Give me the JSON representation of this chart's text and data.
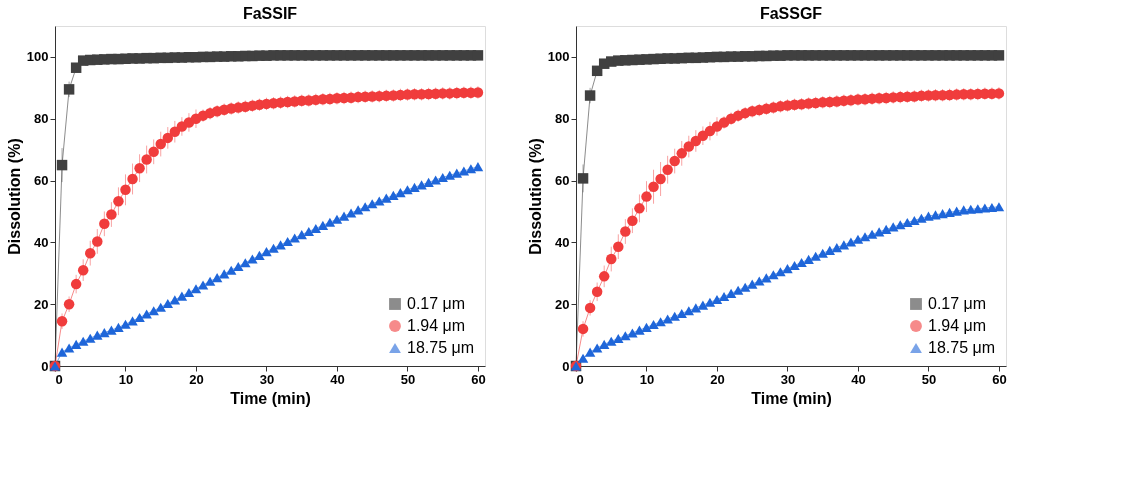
{
  "chart_data": [
    {
      "type": "line",
      "title": "FaSSIF",
      "xlabel": "Time (min)",
      "ylabel": "Dissolution (%)",
      "xlim": [
        0,
        61
      ],
      "ylim": [
        0,
        110
      ],
      "xticks": [
        0,
        10,
        20,
        30,
        40,
        50,
        60
      ],
      "yticks": [
        0,
        20,
        40,
        60,
        80,
        100
      ],
      "grid": false,
      "legend": "bottom right",
      "x": [
        0,
        1,
        2,
        3,
        4,
        5,
        6,
        7,
        8,
        9,
        10,
        11,
        12,
        13,
        14,
        15,
        16,
        17,
        18,
        19,
        20,
        21,
        22,
        23,
        24,
        25,
        26,
        27,
        28,
        29,
        30,
        31,
        32,
        33,
        34,
        35,
        36,
        37,
        38,
        39,
        40,
        41,
        42,
        43,
        44,
        45,
        46,
        47,
        48,
        49,
        50,
        51,
        52,
        53,
        54,
        55,
        56,
        57,
        58,
        59,
        60
      ],
      "series": [
        {
          "name": "0.17 μm",
          "color": "#404040",
          "marker": "square",
          "values": [
            0,
            65,
            89.5,
            96.5,
            98.8,
            99.0,
            99.1,
            99.2,
            99.3,
            99.3,
            99.4,
            99.5,
            99.5,
            99.6,
            99.6,
            99.7,
            99.7,
            99.8,
            99.8,
            99.9,
            99.9,
            100.0,
            100.0,
            100.1,
            100.1,
            100.2,
            100.2,
            100.3,
            100.3,
            100.4,
            100.4,
            100.5,
            100.5,
            100.5,
            100.5,
            100.5,
            100.5,
            100.5,
            100.5,
            100.5,
            100.5,
            100.5,
            100.5,
            100.5,
            100.5,
            100.5,
            100.5,
            100.5,
            100.5,
            100.5,
            100.5,
            100.5,
            100.5,
            100.5,
            100.5,
            100.5,
            100.5,
            100.5,
            100.5,
            100.5,
            100.5
          ],
          "errors": [
            0,
            5.5,
            2.5,
            1,
            0.5,
            0.5,
            0.5,
            0.5,
            0.5,
            0.5,
            0.5,
            0.5,
            0.5,
            0.5,
            0.5,
            0.5,
            0.5,
            0.5,
            0.5,
            0.5,
            0.5,
            0.5,
            0.5,
            0.5,
            0.5,
            0.5,
            0.5,
            0.5,
            0.5,
            0.5,
            0.5,
            0.5,
            0.5,
            0.5,
            0.5,
            0.5,
            0.5,
            0.5,
            0.5,
            0.5,
            0.5,
            0.5,
            0.5,
            0.5,
            0.5,
            0.5,
            0.5,
            0.5,
            0.5,
            0.5,
            0.5,
            0.5,
            0.5,
            0.5,
            0.5,
            0.5,
            0.5,
            0.5,
            0.5,
            0.5,
            0.5
          ]
        },
        {
          "name": "1.94 μm",
          "color": "#f03c3c",
          "marker": "circle",
          "values": [
            0,
            14.5,
            20,
            26.5,
            31,
            36.5,
            40.3,
            46,
            49,
            53.3,
            57,
            60.5,
            64,
            66.8,
            69.3,
            71.8,
            73.8,
            75.8,
            77.5,
            78.8,
            80,
            81,
            81.8,
            82.4,
            82.9,
            83.3,
            83.6,
            83.9,
            84.2,
            84.5,
            84.8,
            85.0,
            85.2,
            85.4,
            85.6,
            85.8,
            85.9,
            86.1,
            86.3,
            86.4,
            86.6,
            86.7,
            86.8,
            87.0,
            87.1,
            87.2,
            87.3,
            87.4,
            87.5,
            87.7,
            87.8,
            87.9,
            87.9,
            88.0,
            88.1,
            88.2,
            88.2,
            88.3,
            88.4,
            88.4,
            88.5
          ],
          "errors": [
            0,
            2.5,
            2.5,
            3,
            3.5,
            4,
            4,
            4,
            4,
            4.5,
            5,
            5,
            4.5,
            4.5,
            4,
            4,
            3.5,
            3.5,
            3,
            3,
            3,
            2,
            2,
            2,
            2,
            2,
            2,
            2,
            2,
            2,
            2,
            2,
            2,
            2,
            2,
            2,
            2,
            2,
            2,
            2,
            2,
            2,
            2,
            2,
            2,
            2,
            2,
            2,
            2,
            2,
            2,
            2,
            2,
            2,
            2,
            2,
            2,
            2,
            2,
            2,
            2
          ]
        },
        {
          "name": "18.75 μm",
          "color": "#1f66d9",
          "marker": "triangle",
          "values": [
            0,
            4.5,
            5.8,
            7,
            8,
            9,
            10,
            10.8,
            11.6,
            12.5,
            13.5,
            14.6,
            15.7,
            16.8,
            17.9,
            19,
            20.2,
            21.4,
            22.6,
            23.8,
            25,
            26.2,
            27.4,
            28.6,
            29.8,
            31,
            32.2,
            33.4,
            34.6,
            35.8,
            37,
            38.1,
            39.2,
            40.3,
            41.4,
            42.5,
            43.5,
            44.5,
            45.5,
            46.5,
            47.5,
            48.5,
            49.5,
            50.5,
            51.5,
            52.5,
            53.4,
            54.3,
            55.2,
            56.1,
            57,
            57.8,
            58.6,
            59.4,
            60.2,
            61,
            61.7,
            62.4,
            63.1,
            63.8,
            64.5
          ],
          "errors": [
            0,
            1,
            1,
            1,
            1,
            1,
            1,
            1,
            1,
            1,
            1,
            1,
            1,
            1,
            1,
            1,
            1,
            1,
            1,
            1,
            1,
            1,
            1,
            1,
            1,
            1,
            1,
            1,
            1,
            1,
            1,
            1,
            1,
            1,
            1,
            1,
            1,
            1,
            1,
            1,
            1,
            1,
            1,
            1,
            1,
            1,
            1,
            1,
            1,
            1,
            1,
            1,
            1,
            1,
            1,
            1,
            1,
            1,
            1,
            1,
            1
          ]
        }
      ]
    },
    {
      "type": "line",
      "title": "FaSSGF",
      "xlabel": "Time (min)",
      "ylabel": "Dissolution (%)",
      "xlim": [
        0,
        61
      ],
      "ylim": [
        0,
        110
      ],
      "xticks": [
        0,
        10,
        20,
        30,
        40,
        50,
        60
      ],
      "yticks": [
        0,
        20,
        40,
        60,
        80,
        100
      ],
      "grid": false,
      "legend": "bottom right",
      "x": [
        0,
        1,
        2,
        3,
        4,
        5,
        6,
        7,
        8,
        9,
        10,
        11,
        12,
        13,
        14,
        15,
        16,
        17,
        18,
        19,
        20,
        21,
        22,
        23,
        24,
        25,
        26,
        27,
        28,
        29,
        30,
        31,
        32,
        33,
        34,
        35,
        36,
        37,
        38,
        39,
        40,
        41,
        42,
        43,
        44,
        45,
        46,
        47,
        48,
        49,
        50,
        51,
        52,
        53,
        54,
        55,
        56,
        57,
        58,
        59,
        60
      ],
      "series": [
        {
          "name": "0.17 μm",
          "color": "#404040",
          "marker": "square",
          "values": [
            0,
            60.7,
            87.5,
            95.5,
            97.8,
            98.5,
            98.8,
            98.9,
            99.0,
            99.1,
            99.2,
            99.3,
            99.4,
            99.5,
            99.5,
            99.6,
            99.7,
            99.7,
            99.8,
            99.9,
            100.0,
            100.0,
            100.1,
            100.1,
            100.2,
            100.2,
            100.3,
            100.3,
            100.4,
            100.4,
            100.5,
            100.5,
            100.5,
            100.5,
            100.5,
            100.5,
            100.5,
            100.5,
            100.5,
            100.5,
            100.5,
            100.5,
            100.5,
            100.5,
            100.5,
            100.5,
            100.5,
            100.5,
            100.5,
            100.5,
            100.5,
            100.5,
            100.5,
            100.5,
            100.5,
            100.5,
            100.5,
            100.5,
            100.5,
            100.5,
            100.5
          ],
          "errors": [
            0,
            4.5,
            2.5,
            1,
            0.5,
            0.5,
            0.5,
            0.5,
            0.5,
            0.5,
            0.5,
            0.5,
            0.5,
            0.5,
            0.5,
            0.5,
            0.5,
            0.5,
            0.5,
            0.5,
            0.5,
            0.5,
            0.5,
            0.5,
            0.5,
            0.5,
            0.5,
            0.5,
            0.5,
            0.5,
            0.5,
            0.5,
            0.5,
            0.5,
            0.5,
            0.5,
            0.5,
            0.5,
            0.5,
            0.5,
            0.5,
            0.5,
            0.5,
            0.5,
            0.5,
            0.5,
            0.5,
            0.5,
            0.5,
            0.5,
            0.5,
            0.5,
            0.5,
            0.5,
            0.5,
            0.5,
            0.5,
            0.5,
            0.5,
            0.5,
            0.5
          ]
        },
        {
          "name": "1.94 μm",
          "color": "#f03c3c",
          "marker": "circle",
          "values": [
            0,
            12,
            18.8,
            24,
            29,
            34.6,
            38.6,
            43.5,
            47,
            51,
            54.8,
            58,
            60.5,
            63.5,
            66.3,
            68.8,
            71,
            72.8,
            74.5,
            76,
            77.5,
            78.8,
            80,
            81,
            81.8,
            82.4,
            82.8,
            83.2,
            83.6,
            84.0,
            84.3,
            84.5,
            84.7,
            84.9,
            85.1,
            85.3,
            85.4,
            85.6,
            85.8,
            86.0,
            86.2,
            86.3,
            86.5,
            86.6,
            86.7,
            86.9,
            87.0,
            87.1,
            87.2,
            87.4,
            87.5,
            87.6,
            87.6,
            87.7,
            87.8,
            87.9,
            87.9,
            88.0,
            88.1,
            88.1,
            88.2
          ],
          "errors": [
            0,
            2.5,
            2.5,
            3,
            3.5,
            4,
            4,
            4,
            4,
            4.5,
            5,
            5.5,
            5.5,
            4.5,
            4,
            4,
            3.5,
            3.5,
            3,
            3,
            3,
            2,
            2,
            2,
            2,
            2,
            2,
            2,
            2,
            2,
            2,
            2,
            2,
            2,
            2,
            2,
            2,
            2,
            2,
            2,
            2,
            2,
            2,
            2,
            2,
            2,
            2,
            2,
            2,
            2,
            2,
            2,
            2,
            2,
            2,
            2,
            2,
            2,
            2,
            2,
            2
          ]
        },
        {
          "name": "18.75 μm",
          "color": "#1f66d9",
          "marker": "triangle",
          "values": [
            0,
            2.5,
            4.5,
            5.8,
            7,
            8,
            8.9,
            9.8,
            10.7,
            11.6,
            12.5,
            13.4,
            14.3,
            15.2,
            16.1,
            17,
            17.9,
            18.8,
            19.7,
            20.6,
            21.5,
            22.5,
            23.5,
            24.5,
            25.5,
            26.5,
            27.5,
            28.5,
            29.5,
            30.5,
            31.5,
            32.5,
            33.5,
            34.5,
            35.5,
            36.5,
            37.4,
            38.3,
            39.2,
            40.1,
            41,
            41.8,
            42.6,
            43.4,
            44.2,
            45,
            45.7,
            46.4,
            47.1,
            47.8,
            48.5,
            48.9,
            49.3,
            49.7,
            50.1,
            50.5,
            50.7,
            50.9,
            51.1,
            51.3,
            51.5
          ],
          "errors": [
            0,
            1,
            1,
            1,
            1,
            1,
            1,
            1,
            1,
            1,
            1,
            1,
            1,
            1,
            1,
            1,
            1,
            1,
            1,
            1,
            1,
            1,
            1,
            1,
            1,
            1,
            1,
            1,
            1,
            1,
            1,
            1,
            1,
            1,
            1,
            1,
            1,
            1,
            1,
            1,
            1,
            1,
            1,
            1,
            1,
            1,
            1,
            1,
            1,
            1,
            1,
            1,
            1,
            1,
            1,
            1,
            1,
            1,
            1,
            1,
            1
          ]
        }
      ]
    }
  ]
}
